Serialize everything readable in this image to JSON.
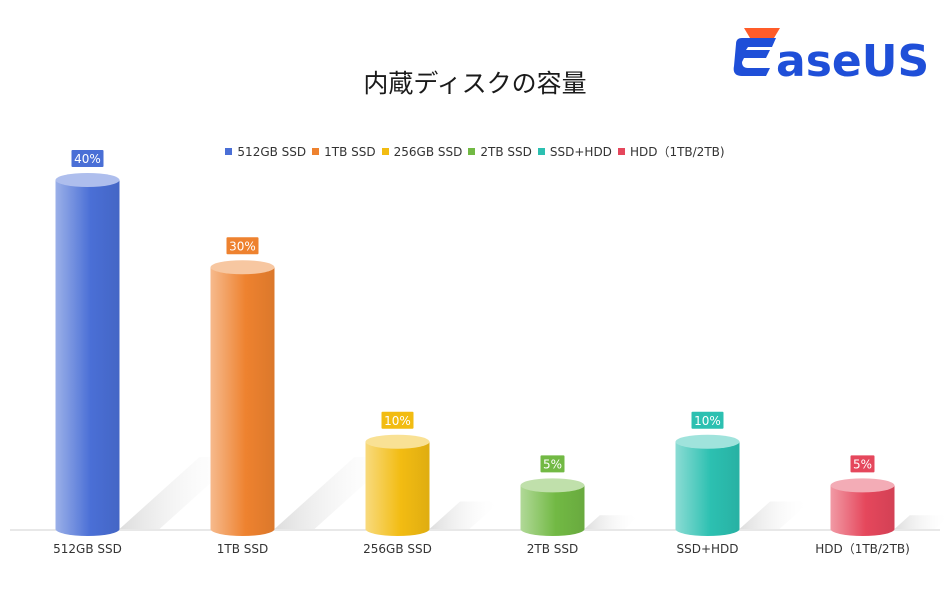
{
  "chart_data": {
    "type": "bar",
    "title": "内蔵ディスクの容量",
    "categories": [
      "512GB SSD",
      "1TB SSD",
      "256GB SSD",
      "2TB SSD",
      "SSD+HDD",
      "HDD（1TB/2TB)"
    ],
    "values": [
      40,
      30,
      10,
      5,
      10,
      5
    ],
    "labels": [
      "40%",
      "30%",
      "10%",
      "5%",
      "10%",
      "5%"
    ],
    "unit": "%",
    "colors": [
      "#4a6fd6",
      "#ee822f",
      "#f2bc12",
      "#72b944",
      "#2cc0b1",
      "#e5475c"
    ],
    "legend": [
      "512GB SSD",
      "1TB SSD",
      "256GB SSD",
      "2TB SSD",
      "SSD+HDD",
      "HDD（1TB/2TB)"
    ],
    "legend_position": "top",
    "ylim": [
      0,
      40
    ],
    "grid": false,
    "style": "3d-cylinder"
  },
  "logo": {
    "text": "EaseUS",
    "colors": [
      "#ff5c29",
      "#1f4fd8"
    ]
  }
}
